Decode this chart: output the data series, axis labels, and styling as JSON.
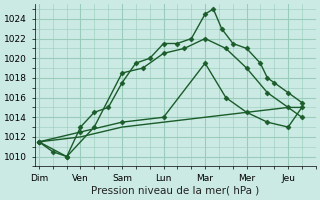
{
  "background_color": "#cceae4",
  "grid_color": "#99ccbb",
  "line_color": "#1a5c2a",
  "xlabel": "Pression niveau de la mer( hPa )",
  "xlabels": [
    "Dim",
    "Ven",
    "Sam",
    "Lun",
    "Mar",
    "Mer",
    "Jeu"
  ],
  "xtick_positions": [
    0,
    1,
    2,
    3,
    4,
    5,
    6
  ],
  "ylim": [
    1009.5,
    1025.5
  ],
  "yticks": [
    1010,
    1012,
    1014,
    1016,
    1018,
    1020,
    1022,
    1024
  ],
  "xlim": [
    -0.1,
    6.6
  ],
  "series": [
    {
      "x": [
        0.0,
        0.33,
        0.67,
        1.0,
        1.33,
        1.67,
        2.0,
        2.33,
        2.67,
        3.0,
        3.33,
        3.67,
        4.0,
        4.2,
        4.4,
        4.67,
        5.0,
        5.33,
        5.5,
        5.67,
        6.0,
        6.33
      ],
      "y": [
        1011.5,
        1010.5,
        1010.0,
        1013.0,
        1014.5,
        1015.0,
        1017.5,
        1019.5,
        1020.0,
        1021.5,
        1021.5,
        1022.0,
        1024.5,
        1025.0,
        1023.0,
        1021.5,
        1021.0,
        1019.5,
        1018.0,
        1017.5,
        1016.5,
        1015.5
      ],
      "marker": "D",
      "markersize": 2.5,
      "linewidth": 1.0
    },
    {
      "x": [
        0.0,
        0.67,
        1.33,
        2.0,
        2.5,
        3.0,
        3.5,
        4.0,
        4.5,
        5.0,
        5.5,
        6.0,
        6.33
      ],
      "y": [
        1011.5,
        1010.0,
        1013.0,
        1018.5,
        1019.0,
        1020.5,
        1021.0,
        1022.0,
        1021.0,
        1019.0,
        1016.5,
        1015.0,
        1014.0
      ],
      "marker": "D",
      "markersize": 2.5,
      "linewidth": 1.0
    },
    {
      "x": [
        0.0,
        1.0,
        2.0,
        3.0,
        4.0,
        4.5,
        5.0,
        5.5,
        6.0,
        6.33
      ],
      "y": [
        1011.5,
        1012.5,
        1013.5,
        1014.0,
        1019.5,
        1016.0,
        1014.5,
        1013.5,
        1013.0,
        1015.0
      ],
      "marker": "D",
      "markersize": 2.5,
      "linewidth": 1.0
    },
    {
      "x": [
        0.0,
        1.0,
        2.0,
        3.0,
        4.0,
        5.0,
        6.0,
        6.33
      ],
      "y": [
        1011.5,
        1012.0,
        1013.0,
        1013.5,
        1014.0,
        1014.5,
        1015.0,
        1015.0
      ],
      "marker": null,
      "markersize": 0,
      "linewidth": 1.0
    }
  ]
}
